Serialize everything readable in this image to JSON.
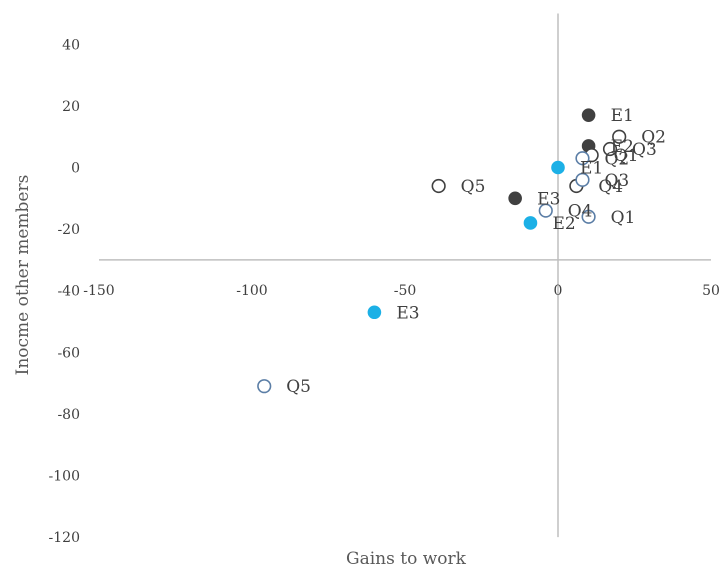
{
  "chart_data": {
    "type": "scatter",
    "xlabel": "Gains to work",
    "ylabel": "Inocme other members",
    "xlim": [
      -150,
      50
    ],
    "ylim": [
      -120,
      40
    ],
    "x_ticks": [
      "-150",
      "-100",
      "-50",
      "0",
      "50"
    ],
    "y_ticks": [
      "40",
      "20",
      "0",
      "-20",
      "-40",
      "-60",
      "-80",
      "-100",
      "-120"
    ],
    "series": [
      {
        "style": "filled-dark",
        "color": "#404040",
        "points": [
          {
            "x": 10,
            "y": 17,
            "label": "E1"
          },
          {
            "x": 10,
            "y": 7,
            "label": "E2"
          },
          {
            "x": -14,
            "y": -10,
            "label": "E3"
          }
        ]
      },
      {
        "style": "hollow-dark",
        "color": "#404040",
        "points": [
          {
            "x": 20,
            "y": 10,
            "label": "Q2"
          },
          {
            "x": 17,
            "y": 6,
            "label": "Q3"
          },
          {
            "x": 11,
            "y": 4,
            "label": "Q1"
          },
          {
            "x": 6,
            "y": -6,
            "label": "Q4"
          },
          {
            "x": -39,
            "y": -6,
            "label": "Q5"
          }
        ]
      },
      {
        "style": "filled-blue",
        "color": "#1cb0e6",
        "points": [
          {
            "x": 0,
            "y": 0,
            "label": "E1"
          },
          {
            "x": -9,
            "y": -18,
            "label": "E2"
          },
          {
            "x": -60,
            "y": -47,
            "label": "E3"
          }
        ]
      },
      {
        "style": "hollow-blue",
        "color": "#5b7ea6",
        "points": [
          {
            "x": 8,
            "y": 3,
            "label": "Q2"
          },
          {
            "x": 8,
            "y": -4,
            "label": "Q3"
          },
          {
            "x": -4,
            "y": -14,
            "label": "Q4"
          },
          {
            "x": 10,
            "y": -16,
            "label": "Q1"
          },
          {
            "x": -96,
            "y": -71,
            "label": "Q5"
          }
        ]
      }
    ]
  }
}
